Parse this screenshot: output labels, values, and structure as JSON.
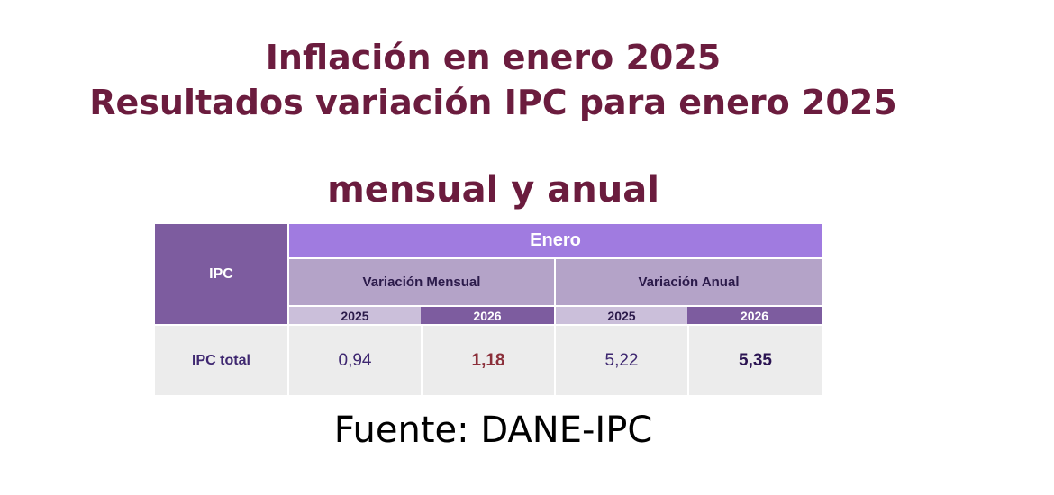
{
  "title": {
    "line1": "Inflación en enero 2025",
    "line2": "Resultados variación IPC para enero 2025",
    "line3": "mensual y anual"
  },
  "table": {
    "row_header": "IPC",
    "group_header": "Enero",
    "sub_headers": [
      "Variación Mensual",
      "Variación Anual"
    ],
    "years": [
      "2025",
      "2026",
      "2025",
      "2026"
    ],
    "rows": [
      {
        "label": "IPC total",
        "values": [
          "0,94",
          "1,18",
          "5,22",
          "5,35"
        ]
      }
    ]
  },
  "source": "Fuente: DANE-IPC",
  "colors": {
    "title": "#6b1c3e",
    "header_dark": "#7d5c9f",
    "header_bright": "#a07be0",
    "header_mid": "#b4a3c8",
    "row_bg": "#ececec",
    "highlight_value": "#8b2f3a"
  }
}
